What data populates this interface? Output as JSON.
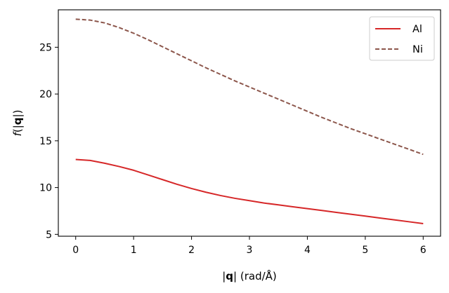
{
  "chart_data": {
    "type": "line",
    "xlabel_parts": [
      "|",
      "q",
      "| (rad/Å)"
    ],
    "ylabel_parts": [
      "f",
      "(|",
      "q",
      "|)"
    ],
    "xlim": [
      -0.3,
      6.3
    ],
    "ylim": [
      4.8,
      29.0
    ],
    "xticks": [
      0,
      1,
      2,
      3,
      4,
      5,
      6
    ],
    "yticks": [
      5,
      10,
      15,
      20,
      25
    ],
    "grid": false,
    "legend_position": "top-right",
    "series": [
      {
        "name": "Al",
        "color": "#d62728",
        "style": "solid",
        "x": [
          0,
          0.25,
          0.5,
          0.75,
          1.0,
          1.25,
          1.5,
          1.75,
          2.0,
          2.25,
          2.5,
          2.75,
          3.0,
          3.25,
          3.5,
          3.75,
          4.0,
          4.25,
          4.5,
          4.75,
          5.0,
          5.25,
          5.5,
          5.75,
          6.0
        ],
        "y": [
          13.0,
          12.9,
          12.6,
          12.25,
          11.85,
          11.35,
          10.85,
          10.35,
          9.9,
          9.5,
          9.15,
          8.85,
          8.6,
          8.35,
          8.15,
          7.95,
          7.75,
          7.55,
          7.35,
          7.15,
          6.95,
          6.75,
          6.55,
          6.35,
          6.15
        ]
      },
      {
        "name": "Ni",
        "color": "#8c564b",
        "style": "dashed",
        "x": [
          0,
          0.25,
          0.5,
          0.75,
          1.0,
          1.25,
          1.5,
          1.75,
          2.0,
          2.25,
          2.5,
          2.75,
          3.0,
          3.25,
          3.5,
          3.75,
          4.0,
          4.25,
          4.5,
          4.75,
          5.0,
          5.25,
          5.5,
          5.75,
          6.0
        ],
        "y": [
          28.0,
          27.9,
          27.6,
          27.1,
          26.5,
          25.8,
          25.05,
          24.3,
          23.55,
          22.8,
          22.1,
          21.4,
          20.75,
          20.1,
          19.45,
          18.8,
          18.15,
          17.5,
          16.9,
          16.3,
          15.75,
          15.2,
          14.65,
          14.1,
          13.55
        ]
      }
    ]
  }
}
